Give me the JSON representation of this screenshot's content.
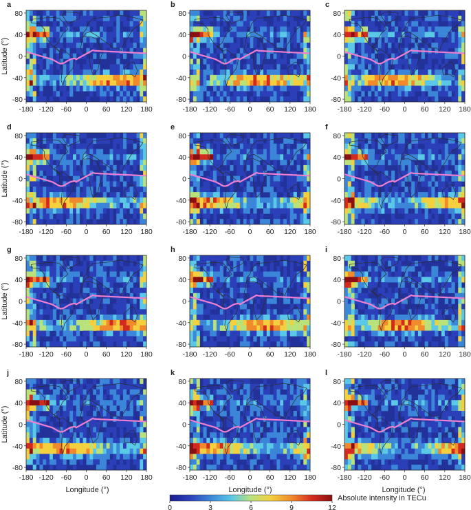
{
  "figure": {
    "y_label": "Latitude (°)",
    "x_label": "Longitude (°)",
    "colorbar": {
      "label": "Absolute intensity in TECu",
      "ticks": [
        "0",
        "3",
        "6",
        "9",
        "12"
      ],
      "colors": [
        "#1b1d8c",
        "#2b3fb8",
        "#3b86d8",
        "#5ac8e6",
        "#b9e27a",
        "#f4d03f",
        "#f08a2c",
        "#d32a1e",
        "#8a0f12"
      ]
    },
    "colors": {
      "ocean_base": "#23329a",
      "coast": "#2b2b2b",
      "dip_equator": "#ef7fd0"
    }
  },
  "chart_data": {
    "type": "heatmap",
    "x_ticks": [
      "-180",
      "-120",
      "-60",
      "0",
      "60",
      "120",
      "180"
    ],
    "y_ticks": [
      "80",
      "40",
      "0",
      "-40",
      "-80"
    ],
    "xlim": [
      -180,
      180
    ],
    "ylim": [
      -85,
      85
    ],
    "colorbar_range": [
      0,
      12
    ],
    "panels": [
      {
        "label": "a"
      },
      {
        "label": "b"
      },
      {
        "label": "c"
      },
      {
        "label": "d"
      },
      {
        "label": "e"
      },
      {
        "label": "f"
      },
      {
        "label": "g"
      },
      {
        "label": "h"
      },
      {
        "label": "i"
      },
      {
        "label": "j"
      },
      {
        "label": "k"
      },
      {
        "label": "l"
      }
    ]
  }
}
